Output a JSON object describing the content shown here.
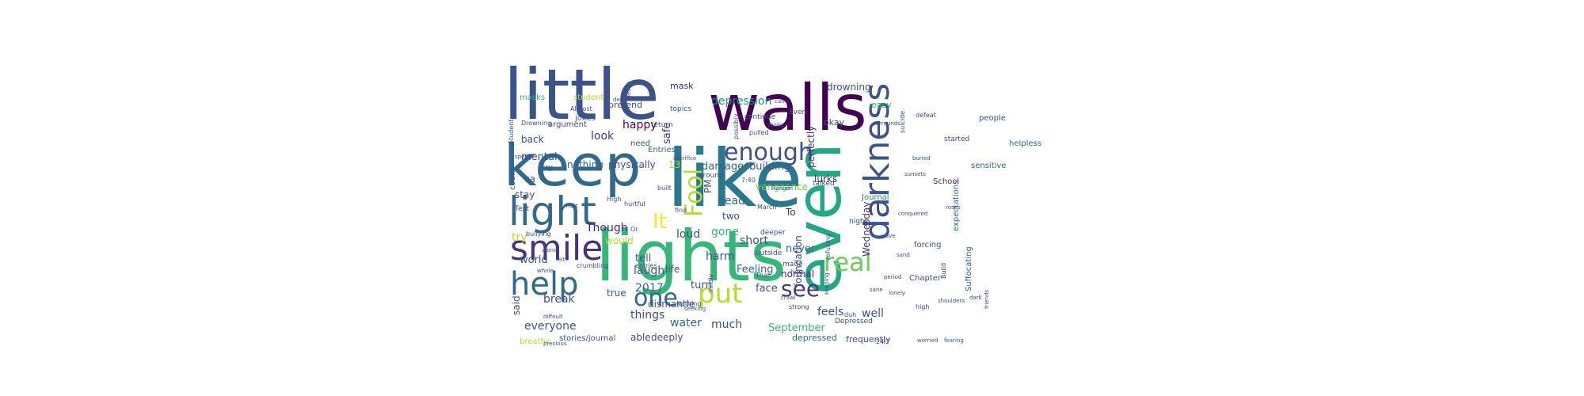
{
  "figure": {
    "type": "word-cloud",
    "background": "#ffffff",
    "palette": "viridis",
    "words": [
      {
        "text": "little",
        "color": "#3b528b"
      },
      {
        "text": "walls",
        "color": "#440154"
      },
      {
        "text": "keep",
        "color": "#31688e"
      },
      {
        "text": "like",
        "color": "#2a788e"
      },
      {
        "text": "lights",
        "color": "#35b779"
      },
      {
        "text": "even",
        "color": "#22a884"
      },
      {
        "text": "light",
        "color": "#31688e"
      },
      {
        "text": "smile",
        "color": "#46327e"
      },
      {
        "text": "help",
        "color": "#31688e"
      },
      {
        "text": "darkness",
        "color": "#3b528b"
      },
      {
        "text": "enough",
        "color": "#3b528b"
      },
      {
        "text": "real",
        "color": "#6ece58"
      },
      {
        "text": "put",
        "color": "#b5de2b"
      },
      {
        "text": "see",
        "color": "#443983"
      },
      {
        "text": "one",
        "color": "#31688e"
      },
      {
        "text": "Fool",
        "color": "#b5de2b"
      },
      {
        "text": "It",
        "color": "#fde725"
      },
      {
        "text": "depression",
        "color": "#21918c"
      },
      {
        "text": "drowning",
        "color": "#3b528b"
      },
      {
        "text": "mask",
        "color": "#482878"
      },
      {
        "text": "easy",
        "color": "#35b779"
      },
      {
        "text": "masks",
        "color": "#35b779"
      },
      {
        "text": "pretend",
        "color": "#3b528b"
      },
      {
        "text": "happy",
        "color": "#440154"
      },
      {
        "text": "look",
        "color": "#443983"
      },
      {
        "text": "mental",
        "color": "#3b528b"
      },
      {
        "text": "back",
        "color": "#3b528b"
      },
      {
        "text": "safe",
        "color": "#46327e"
      },
      {
        "text": "perfectly",
        "color": "#46327e"
      },
      {
        "text": "lurks",
        "color": "#482878"
      },
      {
        "text": "okay",
        "color": "#3b528b"
      },
      {
        "text": "nothing",
        "color": "#31688e"
      },
      {
        "text": "physically",
        "color": "#3b528b"
      },
      {
        "text": "13",
        "color": "#b5de2b"
      },
      {
        "text": "damage",
        "color": "#31688e"
      },
      {
        "text": "building",
        "color": "#3b528b"
      },
      {
        "text": "vengeance",
        "color": "#6ece58"
      },
      {
        "text": "Wednesday",
        "color": "#443983"
      },
      {
        "text": "Journal",
        "color": "#26828e"
      },
      {
        "text": "head",
        "color": "#31688e"
      },
      {
        "text": "two",
        "color": "#3b528b"
      },
      {
        "text": "foundation",
        "color": "#3b528b"
      },
      {
        "text": "gone",
        "color": "#35b779"
      },
      {
        "text": "loud",
        "color": "#3b528b"
      },
      {
        "text": "short",
        "color": "#3b528b"
      },
      {
        "text": "To",
        "color": "#46327e"
      },
      {
        "text": "stay",
        "color": "#3b528b"
      },
      {
        "text": "ca",
        "color": "#3b528b"
      },
      {
        "text": "Though",
        "color": "#482878"
      },
      {
        "text": "try",
        "color": "#b5de2b"
      },
      {
        "text": "would",
        "color": "#b5de2b"
      },
      {
        "text": "harm",
        "color": "#3b528b"
      },
      {
        "text": "never",
        "color": "#31688e"
      },
      {
        "text": "world",
        "color": "#3b528b"
      },
      {
        "text": "tell",
        "color": "#3b528b"
      },
      {
        "text": "life",
        "color": "#3b528b"
      },
      {
        "text": "Feeling",
        "color": "#31688e"
      },
      {
        "text": "laugh",
        "color": "#3b528b"
      },
      {
        "text": "turn",
        "color": "#3b528b"
      },
      {
        "text": "face",
        "color": "#3b528b"
      },
      {
        "text": "normal",
        "color": "#482878"
      },
      {
        "text": "2017",
        "color": "#31688e"
      },
      {
        "text": "true",
        "color": "#3b528b"
      },
      {
        "text": "break",
        "color": "#3b528b"
      },
      {
        "text": "said",
        "color": "#3b528b"
      },
      {
        "text": "dismantle",
        "color": "#3b528b"
      },
      {
        "text": "things",
        "color": "#3b528b"
      },
      {
        "text": "feels",
        "color": "#3b528b"
      },
      {
        "text": "well",
        "color": "#3b528b"
      },
      {
        "text": "everyone",
        "color": "#3b528b"
      },
      {
        "text": "water",
        "color": "#31688e"
      },
      {
        "text": "much",
        "color": "#3b528b"
      },
      {
        "text": "September",
        "color": "#35b779"
      },
      {
        "text": "able",
        "color": "#3b528b"
      },
      {
        "text": "deeply",
        "color": "#3b528b"
      },
      {
        "text": "depressed",
        "color": "#31688e"
      },
      {
        "text": "frequently",
        "color": "#3b528b"
      },
      {
        "text": "stories/journal",
        "color": "#3b528b"
      },
      {
        "text": "breathe",
        "color": "#b5de2b"
      },
      {
        "text": "Depressed",
        "color": "#3b528b"
      },
      {
        "text": "Suffocating",
        "color": "#31688e"
      },
      {
        "text": "expectations",
        "color": "#31688e"
      },
      {
        "text": "School",
        "color": "#482878"
      },
      {
        "text": "sensitive",
        "color": "#31688e"
      },
      {
        "text": "helpless",
        "color": "#31688e"
      },
      {
        "text": "people",
        "color": "#3b528b"
      },
      {
        "text": "Chapter",
        "color": "#3b528b"
      },
      {
        "text": "forcing",
        "color": "#3b528b"
      },
      {
        "text": "Entries",
        "color": "#31688e"
      },
      {
        "text": "need",
        "color": "#3b528b"
      },
      {
        "text": "argument",
        "color": "#3b528b"
      },
      {
        "text": "jokes",
        "color": "#3b528b"
      },
      {
        "text": "Drowning",
        "color": "#3b528b"
      },
      {
        "text": "Student",
        "color": "#3b528b"
      },
      {
        "text": "student",
        "color": "#b5de2b"
      },
      {
        "text": "Almost",
        "color": "#3b528b"
      },
      {
        "text": "topics",
        "color": "#3b528b"
      },
      {
        "text": "continue",
        "color": "#3b528b"
      },
      {
        "text": "return",
        "color": "#3b528b"
      },
      {
        "text": "Even",
        "color": "#3b528b"
      },
      {
        "text": "could",
        "color": "#3b528b"
      },
      {
        "text": "cry",
        "color": "#3b528b"
      },
      {
        "text": "Text",
        "color": "#3b528b"
      },
      {
        "text": "PM",
        "color": "#3b528b"
      },
      {
        "text": "March",
        "color": "#3b528b"
      },
      {
        "text": "deeper",
        "color": "#3b528b"
      },
      {
        "text": "outside",
        "color": "#3b528b"
      },
      {
        "text": "made",
        "color": "#3b528b"
      },
      {
        "text": "talked",
        "color": "#3b528b"
      },
      {
        "text": "night",
        "color": "#3b528b"
      },
      {
        "text": "Nothing",
        "color": "#3b528b"
      },
      {
        "text": "That",
        "color": "#3b528b"
      },
      {
        "text": "High",
        "color": "#3b528b"
      },
      {
        "text": "Or",
        "color": "#3b528b"
      },
      {
        "text": "strong",
        "color": "#3b528b"
      },
      {
        "text": "mildly",
        "color": "#3b528b"
      },
      {
        "text": "duh",
        "color": "#3b528b"
      },
      {
        "text": "24/7",
        "color": "#3b528b"
      },
      {
        "text": "find",
        "color": "#3b528b"
      },
      {
        "text": "started",
        "color": "#3b528b"
      },
      {
        "text": "around",
        "color": "#3b528b"
      },
      {
        "text": "pulled",
        "color": "#3b528b"
      },
      {
        "text": "possibly",
        "color": "#3b528b"
      },
      {
        "text": "defeat",
        "color": "#3b528b"
      },
      {
        "text": "suicide",
        "color": "#3b528b"
      },
      {
        "text": "Build",
        "color": "#3b528b"
      },
      {
        "text": "bullying",
        "color": "#3b528b"
      },
      {
        "text": "hurtful",
        "color": "#3b528b"
      },
      {
        "text": "crumbling",
        "color": "#3b528b"
      },
      {
        "text": "refusing",
        "color": "#3b528b"
      },
      {
        "text": "hurt",
        "color": "#3b528b"
      },
      {
        "text": "spell",
        "color": "#3b528b"
      },
      {
        "text": "7:40",
        "color": "#3b528b"
      },
      {
        "text": "diffeult",
        "color": "#3b528b"
      },
      {
        "text": "precious",
        "color": "#3b528b"
      },
      {
        "text": "worried",
        "color": "#3b528b"
      },
      {
        "text": "friends",
        "color": "#3b528b"
      },
      {
        "text": "built",
        "color": "#3b528b"
      },
      {
        "text": "entries",
        "color": "#3b528b"
      },
      {
        "text": "high",
        "color": "#3b528b"
      },
      {
        "text": "shoulders",
        "color": "#3b528b"
      },
      {
        "text": "conquered",
        "color": "#3b528b"
      },
      {
        "text": "fearing",
        "color": "#3b528b"
      },
      {
        "text": "surrounds",
        "color": "#3b528b"
      },
      {
        "text": "dark",
        "color": "#3b528b"
      },
      {
        "text": "keeping",
        "color": "#3b528b"
      },
      {
        "text": "must",
        "color": "#3b528b"
      },
      {
        "text": "Hunger",
        "color": "#3b528b"
      },
      {
        "text": "deep",
        "color": "#3b528b"
      },
      {
        "text": "carry",
        "color": "#3b528b"
      },
      {
        "text": "leave",
        "color": "#3b528b"
      },
      {
        "text": "make",
        "color": "#3b528b"
      },
      {
        "text": "seeking",
        "color": "#3b528b"
      },
      {
        "text": "sacrifice",
        "color": "#3b528b"
      },
      {
        "text": "crawl",
        "color": "#3b528b"
      },
      {
        "text": "alone",
        "color": "#3b528b"
      },
      {
        "text": "whole",
        "color": "#3b528b"
      },
      {
        "text": "felt",
        "color": "#3b528b"
      },
      {
        "text": "roses",
        "color": "#3b528b"
      },
      {
        "text": "period",
        "color": "#3b528b"
      },
      {
        "text": "lonely",
        "color": "#3b528b"
      },
      {
        "text": "sane",
        "color": "#3b528b"
      },
      {
        "text": "wave",
        "color": "#3b528b"
      },
      {
        "text": "sand",
        "color": "#3b528b"
      },
      {
        "text": "buried",
        "color": "#3b528b"
      },
      {
        "text": "sunsets",
        "color": "#3b528b"
      }
    ]
  }
}
